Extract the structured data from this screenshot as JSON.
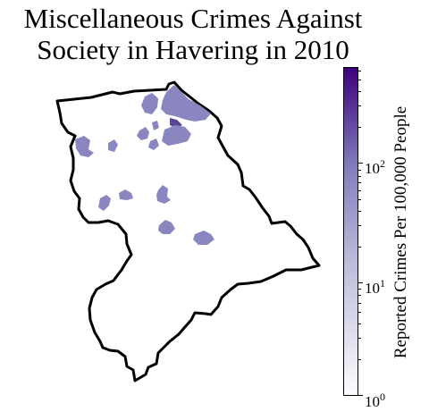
{
  "title": {
    "line1": "Miscellaneous Crimes Against",
    "line2": "Society in Havering in 2010"
  },
  "colors": {
    "boundary": "#000000",
    "area_fill": "#8a86bf",
    "area_fill_dark": "#5a4696",
    "colormap_low": "#fcfbfd",
    "colormap_mid": "#bcbddc",
    "colormap_high": "#3f007d"
  },
  "colorbar": {
    "label": "Reported Crimes Per 100,000 People",
    "scale": "log",
    "min": 1,
    "max": 600,
    "ticks": [
      {
        "base": "10",
        "exp": "0",
        "value": 1
      },
      {
        "base": "10",
        "exp": "1",
        "value": 10
      },
      {
        "base": "10",
        "exp": "2",
        "value": 100
      }
    ]
  }
}
